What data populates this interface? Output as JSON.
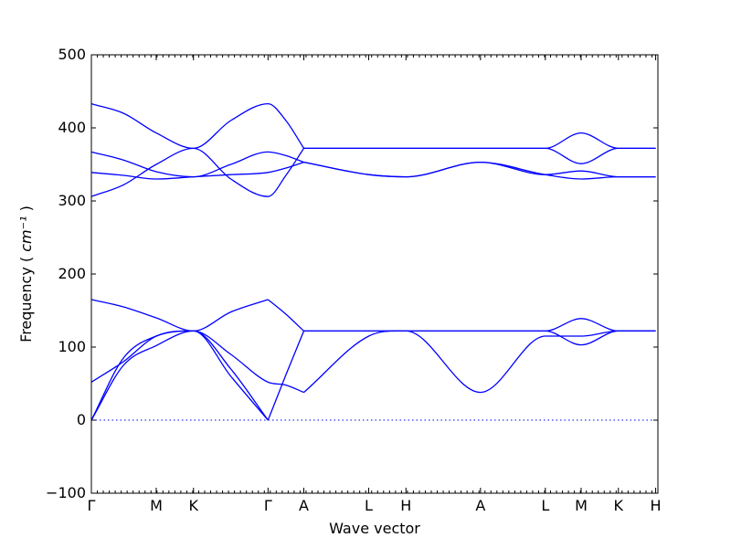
{
  "chart_data": {
    "type": "line",
    "xlabel": "Wave vector",
    "ylabel": "Frequency",
    "ylabel_unit": "cm⁻¹",
    "ylim": [
      -100,
      500
    ],
    "yticks": [
      -100,
      0,
      100,
      200,
      300,
      400,
      500
    ],
    "xlim": [
      0,
      7.6
    ],
    "high_symmetry_points": [
      {
        "label": "Γ",
        "x": 0.0
      },
      {
        "label": "M",
        "x": 0.87
      },
      {
        "label": "K",
        "x": 1.37
      },
      {
        "label": "Γ",
        "x": 2.37
      },
      {
        "label": "A",
        "x": 2.85
      },
      {
        "label": "L",
        "x": 3.72
      },
      {
        "label": "H",
        "x": 4.22
      },
      {
        "label": "A",
        "x": 5.22
      },
      {
        "label": "L",
        "x": 6.09
      },
      {
        "label": "M",
        "x": 6.57
      },
      {
        "label": "K",
        "x": 7.07
      },
      {
        "label": "H",
        "x": 7.57
      }
    ],
    "zero_line": true,
    "grid": false,
    "series": [
      {
        "x": [
          0.0,
          0.43,
          0.87,
          1.37,
          1.87,
          2.37
        ],
        "values": [
          0,
          85,
          115,
          122,
          60,
          0
        ]
      },
      {
        "x": [
          0.0,
          0.43,
          0.87,
          1.37,
          1.87,
          2.37
        ],
        "values": [
          0,
          75,
          102,
          122,
          70,
          0
        ]
      },
      {
        "x": [
          0.0,
          0.43,
          0.87,
          1.37,
          1.87,
          2.37,
          2.61,
          2.85
        ],
        "values": [
          52,
          80,
          115,
          122,
          90,
          52,
          48,
          38
        ]
      },
      {
        "x": [
          0.0,
          0.43,
          0.87,
          1.37,
          1.87,
          2.37
        ],
        "values": [
          165,
          155,
          140,
          122,
          148,
          165
        ]
      },
      {
        "x": [
          2.37,
          2.61,
          2.85
        ],
        "values": [
          0,
          62,
          122
        ]
      },
      {
        "x": [
          2.37,
          2.61,
          2.85
        ],
        "values": [
          165,
          145,
          122
        ]
      },
      {
        "x": [
          2.85,
          3.72,
          4.22,
          5.22,
          6.09,
          6.57,
          7.07,
          7.57
        ],
        "values": [
          38,
          115,
          122,
          38,
          115,
          115,
          122,
          122
        ]
      },
      {
        "x": [
          2.85,
          3.72,
          4.22,
          5.22,
          6.09,
          6.57,
          7.07,
          7.57
        ],
        "values": [
          122,
          122,
          122,
          122,
          122,
          103,
          122,
          122
        ]
      },
      {
        "x": [
          2.85,
          3.72,
          4.22,
          5.22,
          6.09,
          6.57,
          7.07,
          7.57
        ],
        "values": [
          122,
          122,
          122,
          122,
          122,
          139,
          122,
          122
        ]
      },
      {
        "x": [
          0.0,
          0.43,
          0.87,
          1.37,
          1.87,
          2.37,
          2.61,
          2.85
        ],
        "values": [
          306,
          322,
          350,
          372,
          330,
          306,
          335,
          372
        ]
      },
      {
        "x": [
          0.0,
          0.43,
          0.87,
          1.37,
          1.87,
          2.37,
          2.61,
          2.85
        ],
        "values": [
          433,
          420,
          393,
          372,
          410,
          433,
          410,
          372
        ]
      },
      {
        "x": [
          0.0,
          0.43,
          0.87,
          1.37,
          1.87,
          2.37,
          2.61,
          2.85
        ],
        "values": [
          367,
          356,
          340,
          333,
          350,
          367,
          362,
          353
        ]
      },
      {
        "x": [
          0.0,
          0.43,
          0.87,
          1.37,
          1.87,
          2.37,
          2.61,
          2.85
        ],
        "values": [
          339,
          335,
          330,
          333,
          336,
          339,
          345,
          353
        ]
      },
      {
        "x": [
          2.85,
          3.72,
          4.22,
          5.22,
          6.09,
          6.57,
          7.07,
          7.57
        ],
        "values": [
          353,
          336,
          333,
          353,
          336,
          341,
          333,
          333
        ]
      },
      {
        "x": [
          2.85,
          3.72,
          4.22,
          5.22,
          6.09,
          6.57,
          7.07,
          7.57
        ],
        "values": [
          353,
          336,
          333,
          353,
          336,
          330,
          333,
          333
        ]
      },
      {
        "x": [
          2.85,
          3.72,
          4.22,
          5.22,
          6.09,
          6.57,
          7.07,
          7.57
        ],
        "values": [
          372,
          372,
          372,
          372,
          372,
          393,
          372,
          372
        ]
      },
      {
        "x": [
          2.85,
          3.72,
          4.22,
          5.22,
          6.09,
          6.57,
          7.07,
          7.57
        ],
        "values": [
          372,
          372,
          372,
          372,
          372,
          351,
          372,
          372
        ]
      }
    ]
  }
}
